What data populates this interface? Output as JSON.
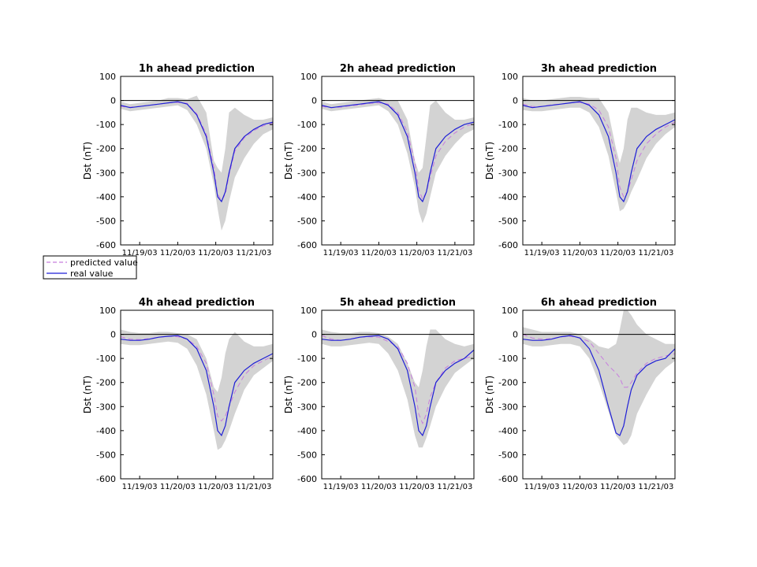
{
  "figure": {
    "legend": {
      "location": "below first panel, left",
      "entries": [
        {
          "label": "predicted value",
          "style": "dashed",
          "color": "#c77dde"
        },
        {
          "label": "real value",
          "style": "solid",
          "color": "#1f1fd6"
        }
      ]
    },
    "colors": {
      "band": "#d3d3d3",
      "predicted": "#c77dde",
      "real": "#1f1fd6",
      "zero_line": "#000000"
    }
  },
  "chart_data": [
    {
      "type": "line",
      "title": "1h ahead prediction",
      "ylabel": "Dst (nT)",
      "ylim": [
        -600,
        100
      ],
      "yticks": [
        100,
        0,
        -100,
        -200,
        -300,
        -400,
        -500,
        -600
      ],
      "xlim": [
        0,
        4
      ],
      "xticks": [
        {
          "x": 0.5,
          "label": "11/19/03"
        },
        {
          "x": 1.5,
          "label": "11/20/03"
        },
        {
          "x": 2.5,
          "label": "11/20/03"
        },
        {
          "x": 3.5,
          "label": "11/21/03"
        }
      ],
      "x": [
        0,
        0.25,
        0.5,
        0.75,
        1.0,
        1.25,
        1.5,
        1.75,
        2.0,
        2.25,
        2.45,
        2.55,
        2.65,
        2.75,
        2.85,
        3.0,
        3.25,
        3.5,
        3.75,
        4.0
      ],
      "series": [
        {
          "name": "real value",
          "values": [
            -20,
            -30,
            -25,
            -20,
            -15,
            -10,
            -5,
            -15,
            -60,
            -150,
            -300,
            -400,
            -420,
            -380,
            -300,
            -200,
            -150,
            -120,
            -100,
            -90
          ]
        },
        {
          "name": "predicted value",
          "values": [
            -25,
            -28,
            -25,
            -20,
            -15,
            -10,
            -8,
            -12,
            -55,
            -140,
            -280,
            -390,
            -415,
            -390,
            -310,
            -210,
            -155,
            -125,
            -105,
            -95
          ]
        }
      ],
      "band_upper": [
        -5,
        -15,
        -10,
        -5,
        0,
        10,
        10,
        5,
        20,
        -50,
        -250,
        -280,
        -300,
        -200,
        -50,
        -30,
        -60,
        -80,
        -80,
        -70
      ],
      "band_lower": [
        -35,
        -45,
        -40,
        -35,
        -30,
        -25,
        -20,
        -40,
        -100,
        -200,
        -350,
        -450,
        -540,
        -500,
        -420,
        -320,
        -240,
        -180,
        -140,
        -120
      ]
    },
    {
      "type": "line",
      "title": "2h ahead prediction",
      "ylabel": "Dst (nT)",
      "ylim": [
        -600,
        100
      ],
      "yticks": [
        100,
        0,
        -100,
        -200,
        -300,
        -400,
        -500,
        -600
      ],
      "xlim": [
        0,
        4
      ],
      "xticks": [
        {
          "x": 0.5,
          "label": "11/19/03"
        },
        {
          "x": 1.5,
          "label": "11/20/03"
        },
        {
          "x": 2.5,
          "label": "11/20/03"
        },
        {
          "x": 3.5,
          "label": "11/21/03"
        }
      ],
      "x": [
        0,
        0.25,
        0.5,
        0.75,
        1.0,
        1.25,
        1.5,
        1.75,
        2.0,
        2.25,
        2.45,
        2.55,
        2.65,
        2.75,
        2.85,
        3.0,
        3.25,
        3.5,
        3.75,
        4.0
      ],
      "series": [
        {
          "name": "real value",
          "values": [
            -20,
            -30,
            -25,
            -20,
            -15,
            -10,
            -5,
            -20,
            -60,
            -150,
            -300,
            -400,
            -420,
            -380,
            -300,
            -200,
            -150,
            -120,
            -100,
            -90
          ]
        },
        {
          "name": "predicted value",
          "values": [
            -25,
            -30,
            -28,
            -22,
            -18,
            -12,
            -10,
            -15,
            -50,
            -130,
            -260,
            -370,
            -410,
            -380,
            -320,
            -230,
            -170,
            -135,
            -110,
            -95
          ]
        }
      ],
      "band_upper": [
        -5,
        -15,
        -10,
        -5,
        0,
        5,
        10,
        0,
        0,
        -80,
        -250,
        -300,
        -280,
        -150,
        -20,
        0,
        -50,
        -80,
        -80,
        -70
      ],
      "band_lower": [
        -35,
        -45,
        -40,
        -35,
        -30,
        -25,
        -20,
        -45,
        -100,
        -220,
        -360,
        -460,
        -510,
        -470,
        -400,
        -300,
        -230,
        -180,
        -140,
        -120
      ]
    },
    {
      "type": "line",
      "title": "3h ahead prediction",
      "ylabel": "Dst (nT)",
      "ylim": [
        -600,
        100
      ],
      "yticks": [
        100,
        0,
        -100,
        -200,
        -300,
        -400,
        -500,
        -600
      ],
      "xlim": [
        0,
        4
      ],
      "xticks": [
        {
          "x": 0.5,
          "label": "11/19/03"
        },
        {
          "x": 1.5,
          "label": "11/20/03"
        },
        {
          "x": 2.5,
          "label": "11/20/03"
        },
        {
          "x": 3.5,
          "label": "11/21/03"
        }
      ],
      "x": [
        0,
        0.25,
        0.5,
        0.75,
        1.0,
        1.25,
        1.5,
        1.75,
        2.0,
        2.25,
        2.45,
        2.55,
        2.65,
        2.75,
        2.85,
        3.0,
        3.25,
        3.5,
        3.75,
        4.0
      ],
      "series": [
        {
          "name": "real value",
          "values": [
            -20,
            -30,
            -25,
            -20,
            -15,
            -10,
            -5,
            -20,
            -60,
            -150,
            -300,
            -400,
            -420,
            -380,
            -300,
            -200,
            -150,
            -120,
            -100,
            -80
          ]
        },
        {
          "name": "predicted value",
          "values": [
            -15,
            -25,
            -25,
            -18,
            -15,
            -10,
            -8,
            -15,
            -40,
            -110,
            -240,
            -360,
            -400,
            -380,
            -330,
            -250,
            -180,
            -140,
            -110,
            -90
          ]
        }
      ],
      "band_upper": [
        10,
        0,
        0,
        5,
        10,
        15,
        15,
        10,
        10,
        -50,
        -200,
        -260,
        -200,
        -80,
        -30,
        -30,
        -50,
        -60,
        -60,
        -50
      ],
      "band_lower": [
        -40,
        -45,
        -45,
        -40,
        -35,
        -30,
        -30,
        -50,
        -110,
        -230,
        -380,
        -460,
        -450,
        -420,
        -380,
        -330,
        -240,
        -180,
        -140,
        -110
      ]
    },
    {
      "type": "line",
      "title": "4h ahead prediction",
      "ylabel": "Dst (nT)",
      "ylim": [
        -600,
        100
      ],
      "yticks": [
        100,
        0,
        -100,
        -200,
        -300,
        -400,
        -500,
        -600
      ],
      "xlim": [
        0,
        4
      ],
      "xticks": [
        {
          "x": 0.5,
          "label": "11/19/03"
        },
        {
          "x": 1.5,
          "label": "11/20/03"
        },
        {
          "x": 2.5,
          "label": "11/20/03"
        },
        {
          "x": 3.5,
          "label": "11/21/03"
        }
      ],
      "x": [
        0,
        0.25,
        0.5,
        0.75,
        1.0,
        1.25,
        1.5,
        1.75,
        2.0,
        2.25,
        2.45,
        2.55,
        2.65,
        2.75,
        2.85,
        3.0,
        3.25,
        3.5,
        3.75,
        4.0
      ],
      "series": [
        {
          "name": "real value",
          "values": [
            -20,
            -25,
            -25,
            -20,
            -12,
            -8,
            -5,
            -20,
            -60,
            -150,
            -300,
            -400,
            -420,
            -380,
            -300,
            -200,
            -150,
            -120,
            -100,
            -80
          ]
        },
        {
          "name": "predicted value",
          "values": [
            -10,
            -20,
            -22,
            -18,
            -12,
            -8,
            -10,
            -20,
            -50,
            -120,
            -250,
            -340,
            -360,
            -340,
            -300,
            -240,
            -170,
            -130,
            -110,
            -90
          ]
        }
      ],
      "band_upper": [
        20,
        10,
        5,
        5,
        10,
        10,
        5,
        0,
        -20,
        -100,
        -220,
        -240,
        -180,
        -80,
        -20,
        10,
        -30,
        -50,
        -50,
        -40
      ],
      "band_lower": [
        -40,
        -45,
        -45,
        -40,
        -35,
        -30,
        -35,
        -60,
        -130,
        -250,
        -400,
        -480,
        -470,
        -440,
        -400,
        -330,
        -230,
        -170,
        -140,
        -110
      ]
    },
    {
      "type": "line",
      "title": "5h ahead prediction",
      "ylabel": "Dst (nT)",
      "ylim": [
        -600,
        100
      ],
      "yticks": [
        100,
        0,
        -100,
        -200,
        -300,
        -400,
        -500,
        -600
      ],
      "xlim": [
        0,
        4
      ],
      "xticks": [
        {
          "x": 0.5,
          "label": "11/19/03"
        },
        {
          "x": 1.5,
          "label": "11/20/03"
        },
        {
          "x": 2.5,
          "label": "11/20/03"
        },
        {
          "x": 3.5,
          "label": "11/21/03"
        }
      ],
      "x": [
        0,
        0.25,
        0.5,
        0.75,
        1.0,
        1.25,
        1.5,
        1.75,
        2.0,
        2.25,
        2.45,
        2.55,
        2.65,
        2.75,
        2.85,
        3.0,
        3.25,
        3.5,
        3.75,
        4.0
      ],
      "series": [
        {
          "name": "real value",
          "values": [
            -20,
            -25,
            -25,
            -20,
            -12,
            -8,
            -5,
            -20,
            -60,
            -150,
            -300,
            -400,
            -420,
            -380,
            -300,
            -200,
            -150,
            -120,
            -100,
            -65
          ]
        },
        {
          "name": "predicted value",
          "values": [
            -5,
            -20,
            -25,
            -20,
            -12,
            -10,
            -12,
            -30,
            -50,
            -120,
            -220,
            -330,
            -370,
            -330,
            -260,
            -200,
            -140,
            -110,
            -100,
            -90
          ]
        }
      ],
      "band_upper": [
        20,
        10,
        5,
        5,
        10,
        10,
        5,
        -10,
        -40,
        -120,
        -200,
        -220,
        -150,
        -50,
        20,
        20,
        -20,
        -40,
        -50,
        -40
      ],
      "band_lower": [
        -40,
        -50,
        -50,
        -45,
        -40,
        -35,
        -40,
        -80,
        -150,
        -270,
        -420,
        -470,
        -470,
        -430,
        -380,
        -300,
        -220,
        -160,
        -130,
        -100
      ]
    },
    {
      "type": "line",
      "title": "6h ahead prediction",
      "ylabel": "Dst (nT)",
      "ylim": [
        -600,
        100
      ],
      "yticks": [
        100,
        0,
        -100,
        -200,
        -300,
        -400,
        -500,
        -600
      ],
      "xlim": [
        0,
        4
      ],
      "xticks": [
        {
          "x": 0.5,
          "label": "11/19/03"
        },
        {
          "x": 1.5,
          "label": "11/20/03"
        },
        {
          "x": 2.5,
          "label": "11/20/03"
        },
        {
          "x": 3.5,
          "label": "11/21/03"
        }
      ],
      "x": [
        0,
        0.25,
        0.5,
        0.75,
        1.0,
        1.25,
        1.5,
        1.75,
        2.0,
        2.25,
        2.45,
        2.55,
        2.65,
        2.75,
        2.85,
        3.0,
        3.25,
        3.5,
        3.75,
        4.0
      ],
      "series": [
        {
          "name": "real value",
          "values": [
            -20,
            -25,
            -25,
            -20,
            -10,
            -5,
            -15,
            -60,
            -150,
            -300,
            -410,
            -420,
            -380,
            -300,
            -230,
            -170,
            -130,
            -110,
            -100,
            -60
          ]
        },
        {
          "name": "predicted value",
          "values": [
            0,
            -15,
            -20,
            -18,
            -10,
            -8,
            -15,
            -30,
            -80,
            -130,
            -160,
            -180,
            -220,
            -220,
            -200,
            -160,
            -120,
            -100,
            -90,
            -80
          ]
        }
      ],
      "band_upper": [
        30,
        20,
        10,
        10,
        10,
        10,
        0,
        -20,
        -50,
        -60,
        -40,
        20,
        100,
        100,
        80,
        40,
        0,
        -20,
        -40,
        -40
      ],
      "band_lower": [
        -40,
        -50,
        -50,
        -45,
        -40,
        -40,
        -50,
        -100,
        -200,
        -320,
        -420,
        -440,
        -460,
        -450,
        -420,
        -330,
        -250,
        -180,
        -140,
        -110
      ]
    }
  ]
}
